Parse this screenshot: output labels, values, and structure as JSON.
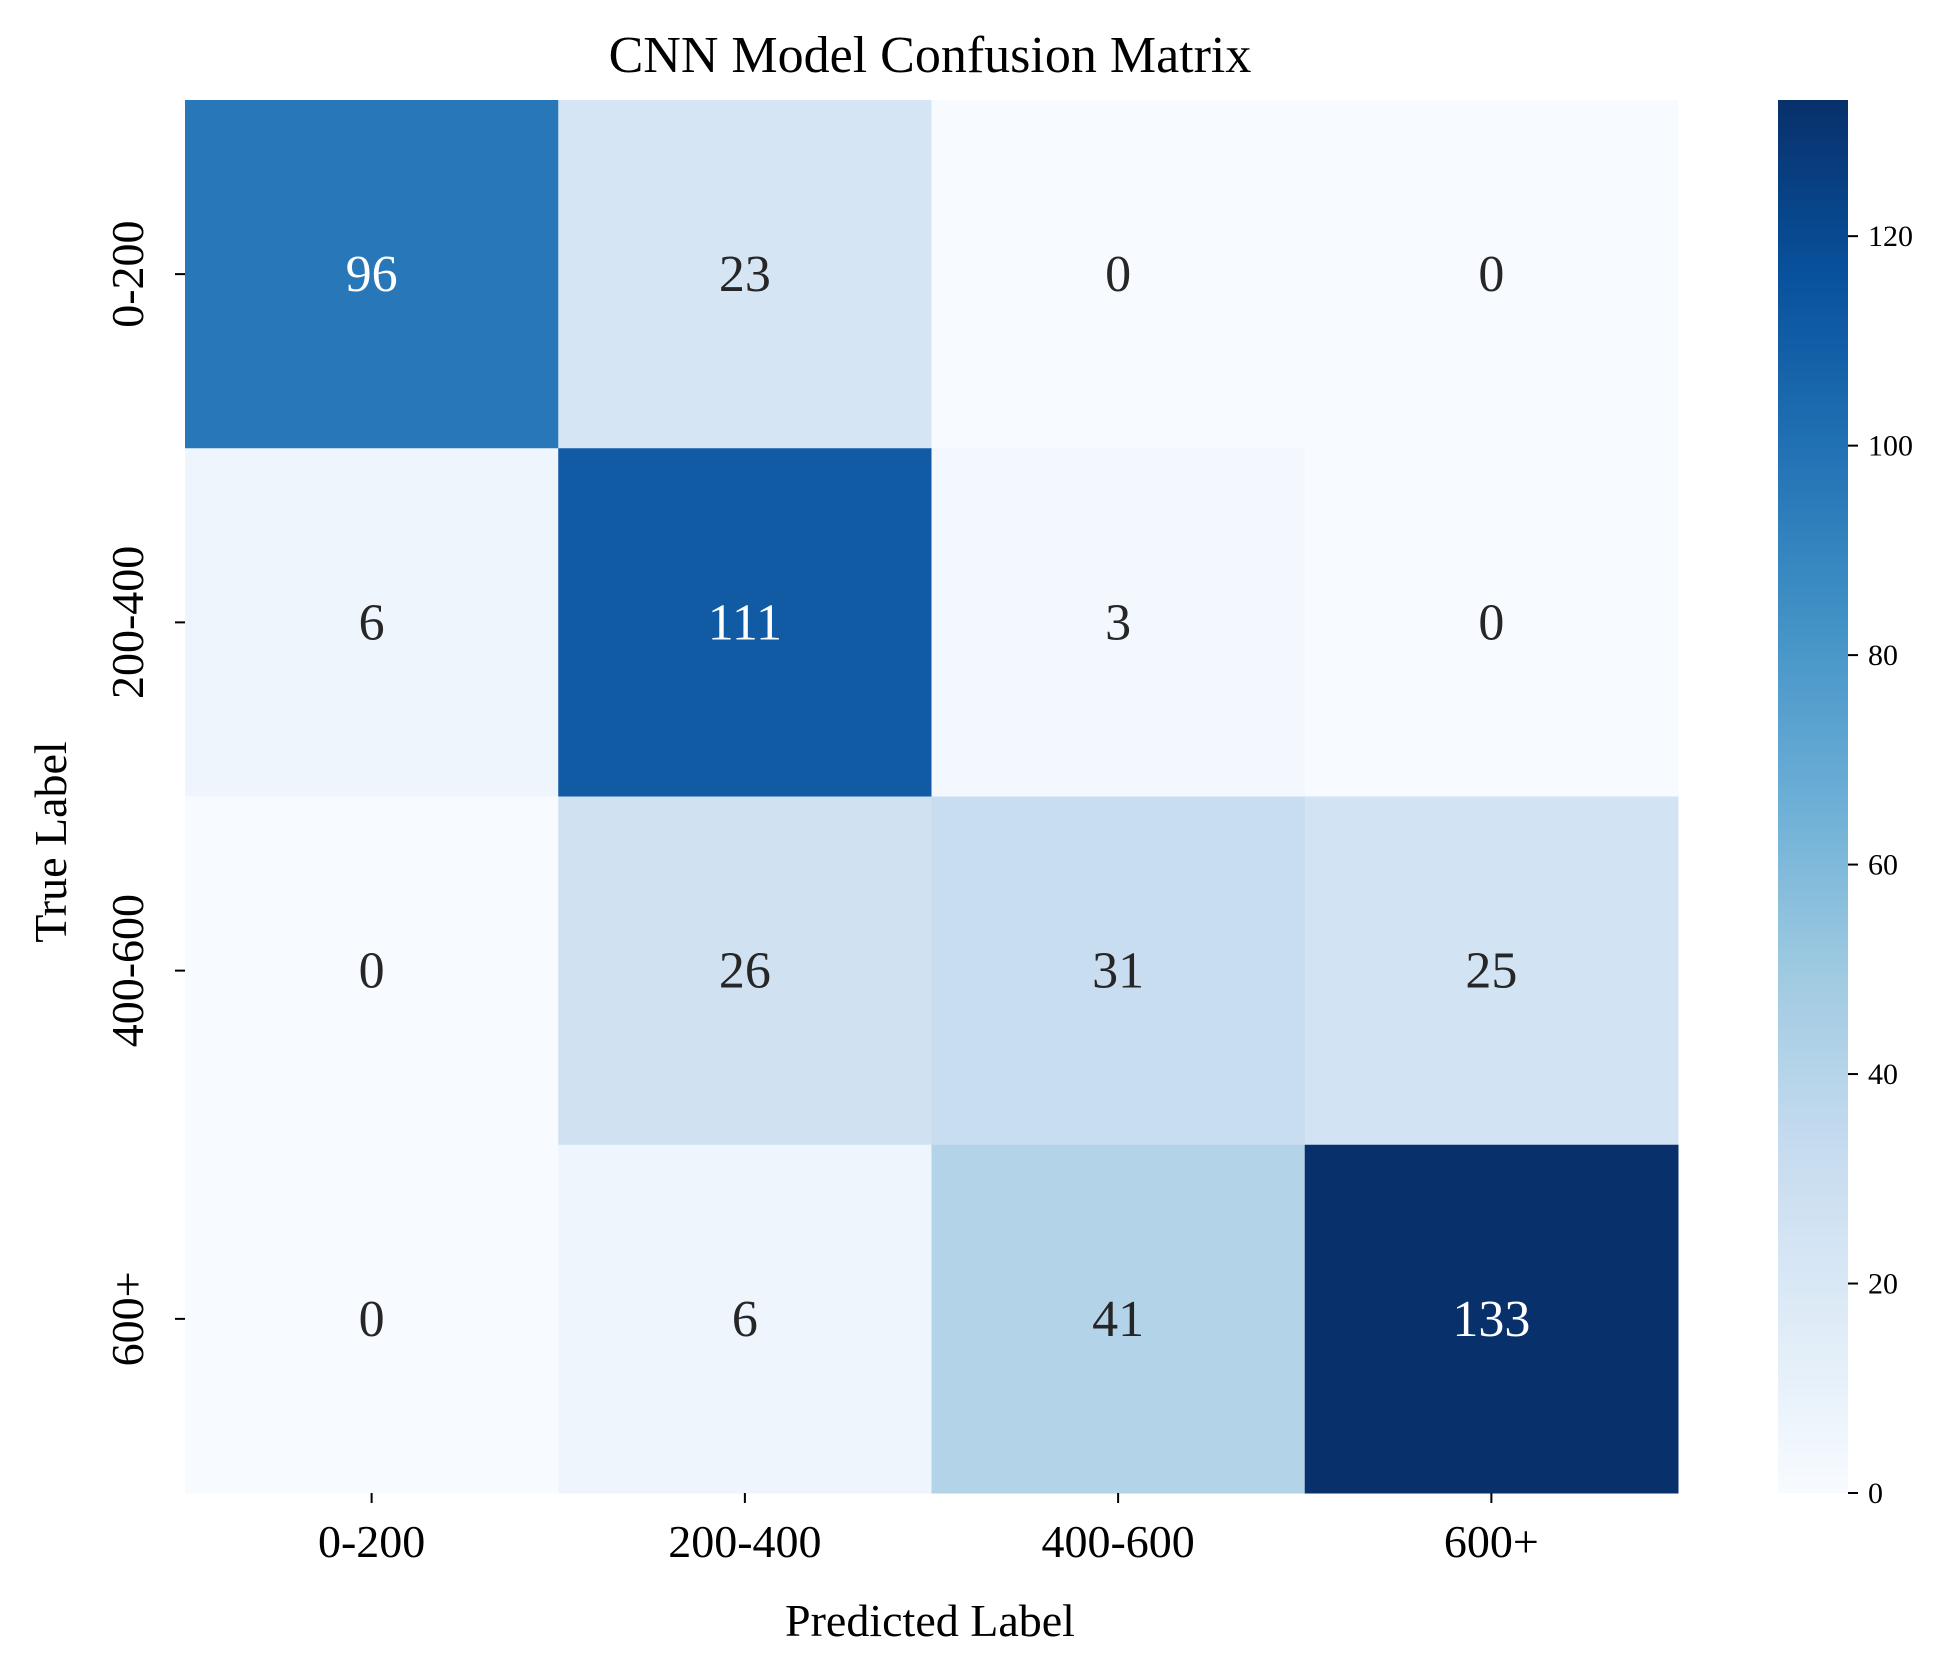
{
  "chart_data": {
    "type": "heatmap",
    "title": "CNN Model Confusion Matrix",
    "xlabel": "Predicted Label",
    "ylabel": "True Label",
    "x_categories": [
      "0-200",
      "200-400",
      "400-600",
      "600+"
    ],
    "y_categories": [
      "0-200",
      "200-400",
      "400-600",
      "600+"
    ],
    "values": [
      [
        96,
        23,
        0,
        0
      ],
      [
        6,
        111,
        3,
        0
      ],
      [
        0,
        26,
        31,
        25
      ],
      [
        0,
        6,
        41,
        133
      ]
    ],
    "colorbar": {
      "min": 0,
      "max": 133,
      "ticks": [
        0,
        20,
        40,
        60,
        80,
        100,
        120
      ],
      "colormap": "Blues",
      "low_color": "#f7fbff",
      "high_color": "#08306b"
    },
    "annotation_colors": {
      "dark_text": "#262626",
      "light_text": "#ffffff"
    },
    "grid": false,
    "legend": "colorbar right"
  }
}
